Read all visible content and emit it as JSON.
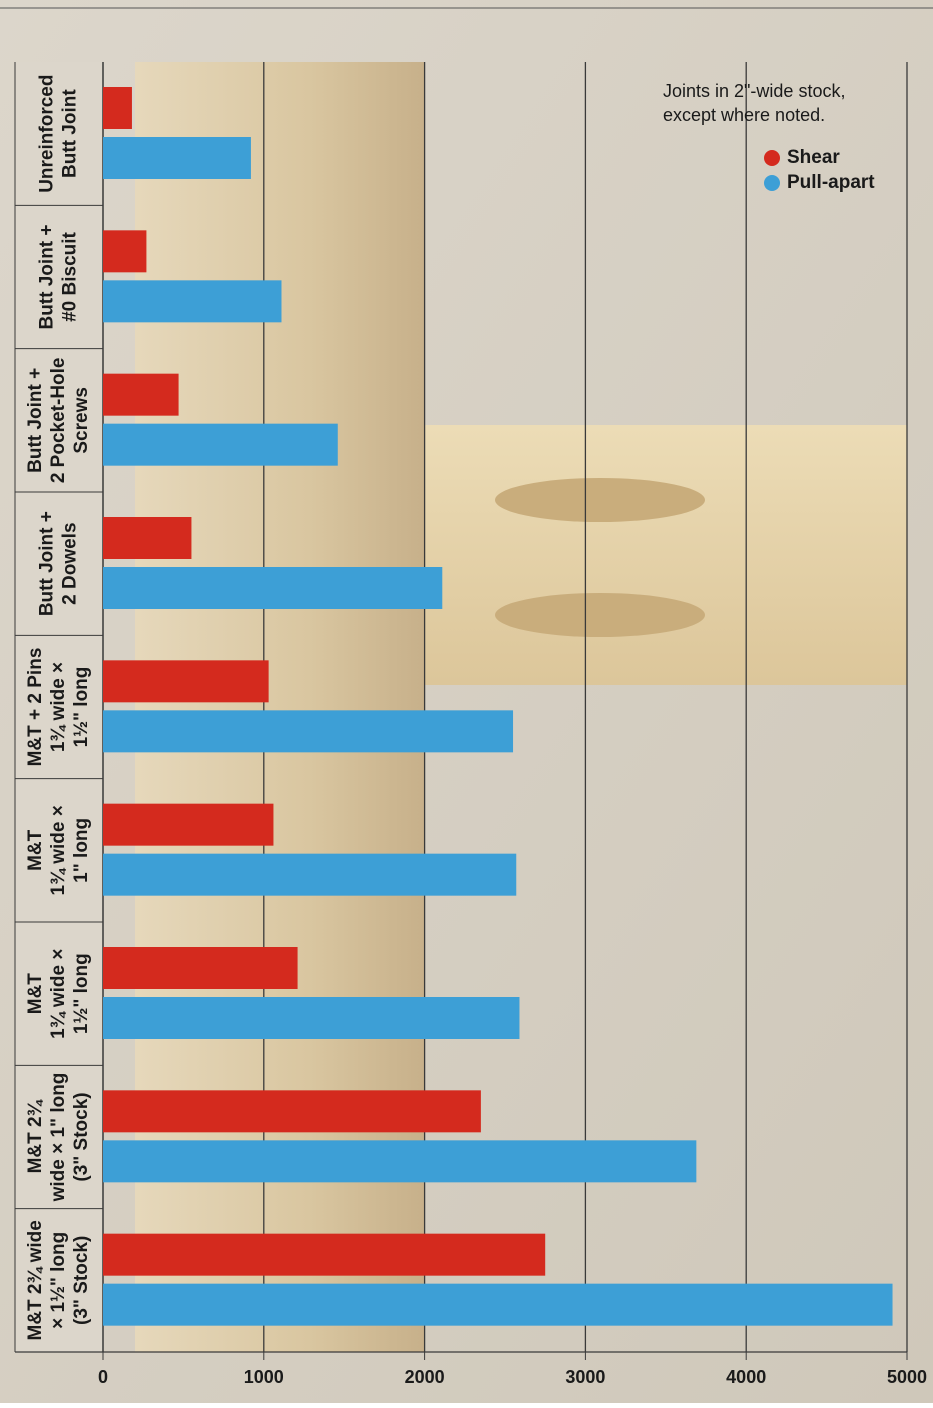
{
  "chart_data": {
    "type": "barh",
    "note": [
      "Joints in 2\"-wide stock,",
      "except where noted."
    ],
    "categories": [
      [
        "Unreinforced",
        "Butt Joint"
      ],
      [
        "Butt Joint +",
        "#0 Biscuit"
      ],
      [
        "Butt Joint +",
        "2 Pocket-Hole",
        "Screws"
      ],
      [
        "Butt Joint +",
        "2 Dowels"
      ],
      [
        "M&T + 2 Pins",
        "1¾ wide ×",
        "1½\" long"
      ],
      [
        "M&T",
        "1¾ wide ×",
        "1\" long"
      ],
      [
        "M&T",
        "1¾ wide ×",
        "1½\" long"
      ],
      [
        "M&T 2¾",
        "wide × 1\" long",
        "(3\" Stock)"
      ],
      [
        "M&T 2¾ wide",
        "× 1½\" long",
        "(3\" Stock)"
      ]
    ],
    "series": [
      {
        "name": "Shear",
        "color": "#d42a1e",
        "values": [
          180,
          270,
          470,
          550,
          1030,
          1060,
          1210,
          2350,
          2750
        ]
      },
      {
        "name": "Pull-apart",
        "color": "#3d9fd6",
        "values": [
          920,
          1110,
          1460,
          2110,
          2550,
          2570,
          2590,
          3690,
          4910
        ]
      }
    ],
    "xlim": [
      0,
      5000
    ],
    "xticks": [
      0,
      1000,
      2000,
      3000,
      4000,
      5000
    ],
    "grid": true
  }
}
